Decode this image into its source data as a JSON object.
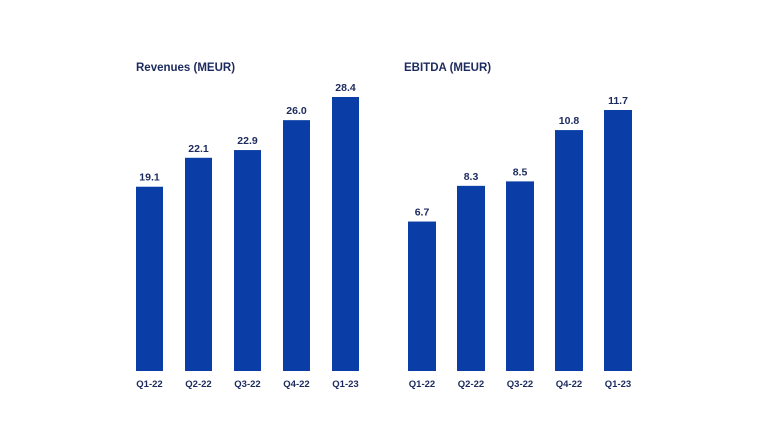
{
  "colors": {
    "bar": "#0a3ea6",
    "text": "#1c2a5e",
    "background": "#ffffff"
  },
  "chart_data": [
    {
      "type": "bar",
      "title": "Revenues (MEUR)",
      "categories": [
        "Q1-22",
        "Q2-22",
        "Q3-22",
        "Q4-22",
        "Q1-23"
      ],
      "values": [
        19.1,
        22.1,
        22.9,
        26.0,
        28.4
      ],
      "value_labels": [
        "19.1",
        "22.1",
        "22.9",
        "26.0",
        "28.4"
      ],
      "xlabel": "",
      "ylabel": "",
      "ylim": [
        0,
        28.4
      ],
      "grid": false,
      "legend": "none"
    },
    {
      "type": "bar",
      "title": "EBITDA (MEUR)",
      "categories": [
        "Q1-22",
        "Q2-22",
        "Q3-22",
        "Q4-22",
        "Q1-23"
      ],
      "values": [
        6.7,
        8.3,
        8.5,
        10.8,
        11.7
      ],
      "value_labels": [
        "6.7",
        "8.3",
        "8.5",
        "10.8",
        "11.7"
      ],
      "xlabel": "",
      "ylabel": "",
      "ylim": [
        0,
        11.7
      ],
      "grid": false,
      "legend": "none"
    }
  ]
}
